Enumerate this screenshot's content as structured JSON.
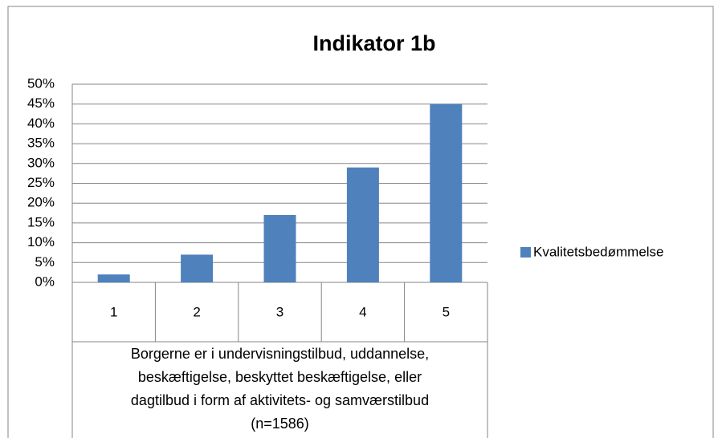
{
  "chart_data": {
    "type": "bar",
    "title": "Indikator 1b",
    "categories": [
      "1",
      "2",
      "3",
      "4",
      "5"
    ],
    "series": [
      {
        "name": "Kvalitetsbedømmelse",
        "color": "#4f81bd",
        "values": [
          2,
          7,
          17,
          29,
          45
        ]
      }
    ],
    "xlabel": [
      "Borgerne er i undervisningstilbud, uddannelse,",
      "beskæftigelse, beskyttet beskæftigelse, eller",
      "dagtilbud i form af aktivitets-  og samværstilbud",
      "(n=1586)"
    ],
    "ylim": [
      0,
      50
    ],
    "yticks": [
      {
        "value": 0,
        "label": "0%"
      },
      {
        "value": 5,
        "label": "5%"
      },
      {
        "value": 10,
        "label": "10%"
      },
      {
        "value": 15,
        "label": "15%"
      },
      {
        "value": 20,
        "label": "20%"
      },
      {
        "value": 25,
        "label": "25%"
      },
      {
        "value": 30,
        "label": "30%"
      },
      {
        "value": 35,
        "label": "35%"
      },
      {
        "value": 40,
        "label": "40%"
      },
      {
        "value": 45,
        "label": "45%"
      },
      {
        "value": 50,
        "label": "50%"
      }
    ],
    "grid": true,
    "legend": "right"
  }
}
